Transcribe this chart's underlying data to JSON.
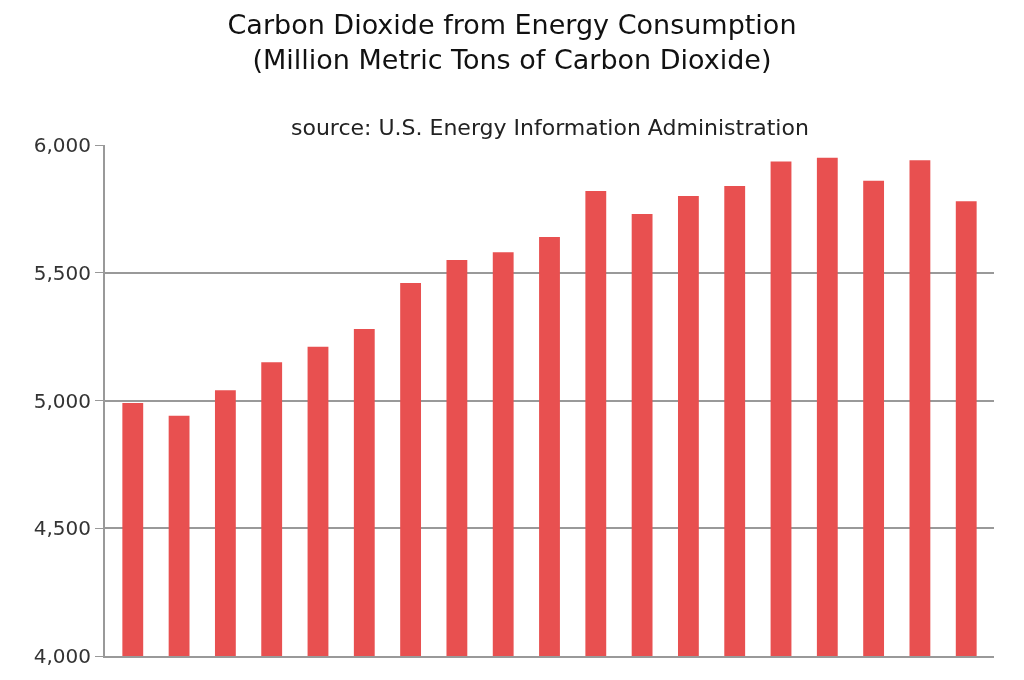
{
  "chart_data": {
    "type": "bar",
    "title": "Carbon Dioxide from Energy Consumption\n(Million Metric Tons of Carbon Dioxide)",
    "annotations": [
      "source: U.S. Energy Information Administration"
    ],
    "categories": [
      null,
      null,
      null,
      null,
      null,
      null,
      null,
      null,
      null,
      null,
      null,
      null,
      null,
      null,
      null,
      null,
      null,
      null,
      null
    ],
    "values": [
      4990,
      4940,
      5040,
      5150,
      5210,
      5280,
      5460,
      5550,
      5580,
      5640,
      5820,
      5730,
      5800,
      5840,
      5935,
      5950,
      5860,
      5940,
      5780
    ],
    "color": "#e85050",
    "ylim": [
      4000,
      6000
    ],
    "yticks": [
      {
        "value": 4000,
        "label": "4,000"
      },
      {
        "value": 4500,
        "label": "4,500"
      },
      {
        "value": 5000,
        "label": "5,000"
      },
      {
        "value": 5500,
        "label": "5,500"
      },
      {
        "value": 6000,
        "label": "6,000"
      }
    ],
    "grid": "y",
    "tick_labels": "y"
  }
}
